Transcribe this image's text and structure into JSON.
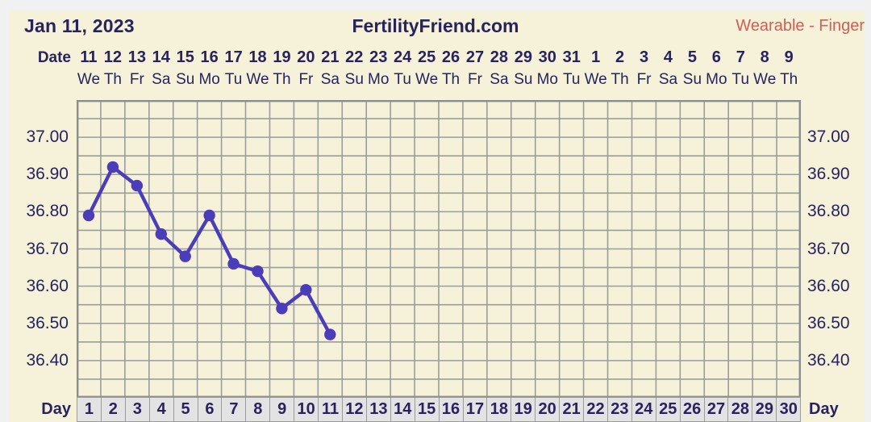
{
  "header": {
    "chart_date": "Jan 11, 2023",
    "site_title": "FertilityFriend.com",
    "device_label": "Wearable - Finger"
  },
  "date_axis": {
    "label": "Date",
    "dates": [
      "11",
      "12",
      "13",
      "14",
      "15",
      "16",
      "17",
      "18",
      "19",
      "20",
      "21",
      "22",
      "23",
      "24",
      "25",
      "26",
      "27",
      "28",
      "29",
      "30",
      "31",
      "1",
      "2",
      "3",
      "4",
      "5",
      "6",
      "7",
      "8",
      "9"
    ],
    "weekdays": [
      "We",
      "Th",
      "Fr",
      "Sa",
      "Su",
      "Mo",
      "Tu",
      "We",
      "Th",
      "Fr",
      "Sa",
      "Su",
      "Mo",
      "Tu",
      "We",
      "Th",
      "Fr",
      "Sa",
      "Su",
      "Mo",
      "Tu",
      "We",
      "Th",
      "Fr",
      "Sa",
      "Su",
      "Mo",
      "Tu",
      "We",
      "Th"
    ]
  },
  "y_axis": {
    "tick_labels": [
      "37.00",
      "36.90",
      "36.80",
      "36.70",
      "36.60",
      "36.50",
      "36.40"
    ],
    "tick_values": [
      37.0,
      36.9,
      36.8,
      36.7,
      36.6,
      36.5,
      36.4
    ]
  },
  "day_axis": {
    "label_left": "Day",
    "label_right": "Day",
    "days": [
      "1",
      "2",
      "3",
      "4",
      "5",
      "6",
      "7",
      "8",
      "9",
      "10",
      "11",
      "12",
      "13",
      "14",
      "15",
      "16",
      "17",
      "18",
      "19",
      "20",
      "21",
      "22",
      "23",
      "24",
      "25",
      "26",
      "27",
      "28",
      "29",
      "30"
    ]
  },
  "chart_data": {
    "type": "line",
    "title": "FertilityFriend.com",
    "x_label": "Day",
    "x": [
      1,
      2,
      3,
      4,
      5,
      6,
      7,
      8,
      9,
      10,
      11
    ],
    "values": [
      36.79,
      36.92,
      36.87,
      36.74,
      36.68,
      36.79,
      36.66,
      36.64,
      36.54,
      36.59,
      36.47
    ],
    "x_days_total": 30,
    "ylim": [
      36.3,
      37.1
    ],
    "y_gridline_step": 0.05,
    "grid": "on",
    "line_color": "#4b3cba",
    "marker": "circle"
  },
  "colors": {
    "page_background": "#f1f1f1",
    "panel_background": "#f5f2d9",
    "grid_line": "#9c9c9c",
    "plot_border": "#8d8d8d",
    "text_navy": "#29225f",
    "device_accent": "#cf5f58",
    "temp_line": "#4b3cba",
    "day_cell_background": "#e3e3e3"
  }
}
